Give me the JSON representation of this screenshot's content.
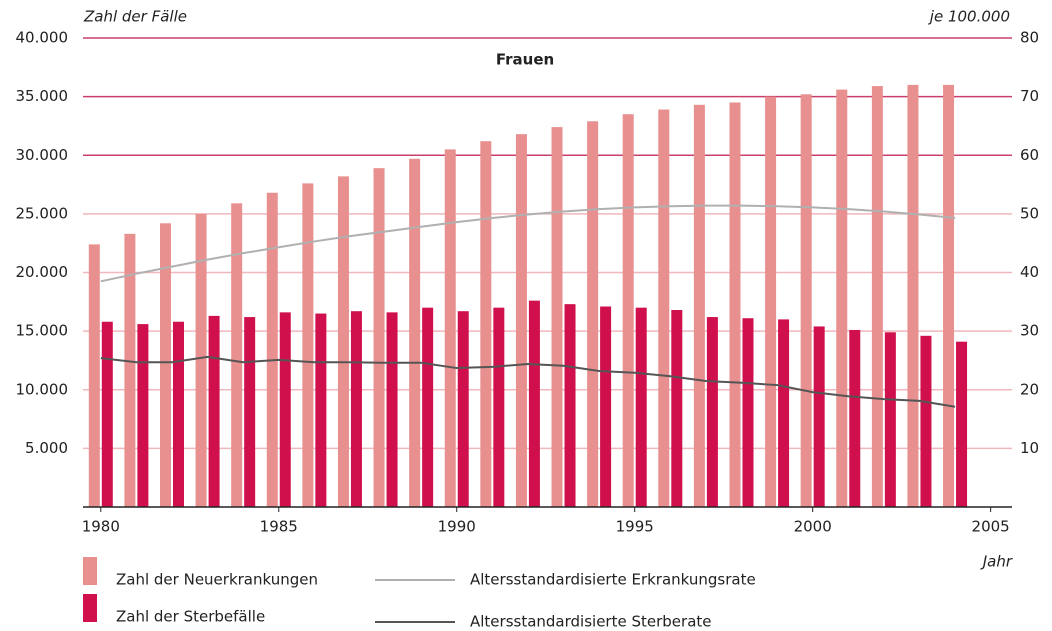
{
  "chart_data": {
    "type": "bar",
    "title": "Frauen",
    "ylabel": "Zahl der Fälle",
    "y2label": "je 100.000",
    "xlabel": "Jahr",
    "x": [
      1980,
      1981,
      1982,
      1983,
      1984,
      1985,
      1986,
      1987,
      1988,
      1989,
      1990,
      1991,
      1992,
      1993,
      1994,
      1995,
      1996,
      1997,
      1998,
      1999,
      2000,
      2001,
      2002,
      2003,
      2004
    ],
    "xlim": [
      1979.5,
      2005.6
    ],
    "xticks": [
      1980,
      1985,
      1990,
      1995,
      2000,
      2005
    ],
    "ylim": [
      0,
      40000
    ],
    "yticks": [
      {
        "value": 5000,
        "label": "5.000"
      },
      {
        "value": 10000,
        "label": "10.000"
      },
      {
        "value": 15000,
        "label": "15.000"
      },
      {
        "value": 20000,
        "label": "20.000"
      },
      {
        "value": 25000,
        "label": "25.000"
      },
      {
        "value": 30000,
        "label": "30.000"
      },
      {
        "value": 35000,
        "label": "35.000"
      },
      {
        "value": 40000,
        "label": "40.000"
      }
    ],
    "y2lim": [
      0,
      80
    ],
    "y2ticks": [
      10,
      20,
      30,
      40,
      50,
      60,
      70,
      80
    ],
    "grid": true,
    "series": [
      {
        "name": "Zahl der Neuerkrankungen",
        "type": "bar",
        "color": "#e8908f",
        "values": [
          22400,
          23300,
          24200,
          25000,
          25900,
          26800,
          27600,
          28200,
          28900,
          29700,
          30500,
          31200,
          31800,
          32400,
          32900,
          33500,
          33900,
          34300,
          34500,
          35000,
          35200,
          35600,
          35900,
          36000,
          36000
        ]
      },
      {
        "name": "Zahl der Sterbefälle",
        "type": "bar",
        "color": "#d0104c",
        "values": [
          15800,
          15600,
          15800,
          16300,
          16200,
          16600,
          16500,
          16700,
          16600,
          17000,
          16700,
          17000,
          17600,
          17300,
          17100,
          17000,
          16800,
          16200,
          16100,
          16000,
          15400,
          15100,
          14900,
          14600,
          14100
        ]
      },
      {
        "name": "Altersstandardisierte Erkrankungsrate",
        "type": "line",
        "axis": "y2",
        "color": "#b0b0b0",
        "values": [
          38.5,
          39.8,
          41.0,
          42.2,
          43.3,
          44.3,
          45.3,
          46.2,
          47.0,
          47.8,
          48.6,
          49.3,
          49.9,
          50.4,
          50.8,
          51.1,
          51.3,
          51.4,
          51.4,
          51.3,
          51.1,
          50.8,
          50.4,
          49.9,
          49.3
        ]
      },
      {
        "name": "Altersstandardisierte Sterberate",
        "type": "line",
        "axis": "y2",
        "color": "#555555",
        "values": [
          25.4,
          24.7,
          24.7,
          25.6,
          24.7,
          25.1,
          24.7,
          24.7,
          24.6,
          24.6,
          23.7,
          23.9,
          24.4,
          24.1,
          23.2,
          22.9,
          22.3,
          21.5,
          21.2,
          20.8,
          19.6,
          18.9,
          18.4,
          18.1,
          17.1
        ]
      }
    ]
  }
}
